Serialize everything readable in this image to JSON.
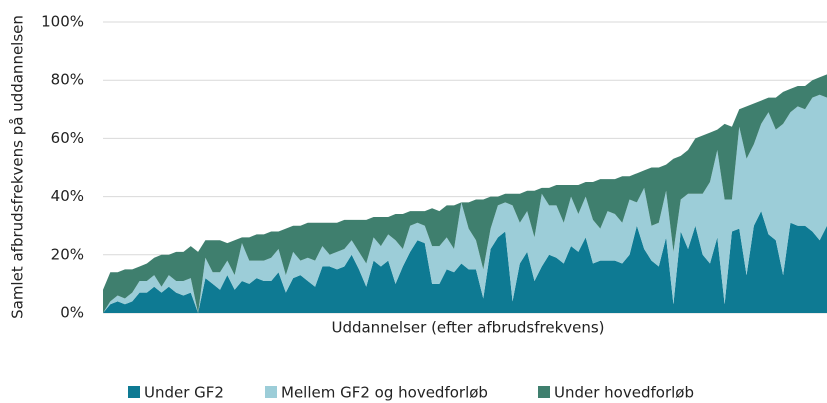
{
  "chart_data": {
    "type": "stacked_area",
    "x_label": "Uddannelser (efter afbrudsfrekvens)",
    "y_label": "Samlet afbrudsfrekvens på uddannelsen",
    "categories": [
      null,
      null,
      null,
      null,
      null,
      null,
      null,
      null,
      null,
      null,
      null,
      null,
      null,
      null,
      null,
      null,
      null,
      null,
      null,
      null,
      null,
      null,
      null,
      null,
      null,
      null,
      null,
      null,
      null,
      null,
      null,
      null,
      null,
      null,
      null,
      null,
      null,
      null,
      null,
      null,
      null,
      null,
      null,
      null,
      null,
      null,
      null,
      null,
      null,
      null,
      null,
      null,
      null,
      null,
      null,
      null,
      null,
      null,
      null,
      null,
      null,
      null,
      null,
      null,
      null,
      null,
      null,
      null,
      null,
      null,
      null,
      null,
      null,
      null,
      null,
      null,
      null,
      null,
      null,
      null,
      null,
      null,
      null,
      null,
      null,
      null,
      null,
      null,
      null,
      null,
      null,
      null,
      null,
      null,
      null,
      null,
      null,
      null,
      null,
      null
    ],
    "series": [
      {
        "name": "Under GF2",
        "color": "#0e7a93",
        "values": [
          0,
          3,
          4,
          3,
          4,
          7,
          7,
          9,
          7,
          9,
          7,
          6,
          7,
          0,
          12,
          10,
          8,
          13,
          8,
          11,
          10,
          12,
          11,
          11,
          14,
          7,
          12,
          13,
          11,
          9,
          16,
          16,
          15,
          16,
          20,
          15,
          9,
          18,
          16,
          18,
          10,
          16,
          21,
          25,
          24,
          10,
          10,
          15,
          14,
          17,
          15,
          15,
          5,
          22,
          26,
          28,
          4,
          17,
          21,
          11,
          16,
          20,
          19,
          17,
          23,
          21,
          26,
          17,
          18,
          18,
          18,
          17,
          20,
          30,
          22,
          18,
          16,
          26,
          3,
          28,
          22,
          30,
          20,
          17,
          26,
          3,
          28,
          29,
          13,
          30,
          35,
          27,
          25,
          13,
          31,
          30,
          30,
          28,
          25,
          30
        ]
      },
      {
        "name": "Mellem GF2 og hovedforløb",
        "color": "#9ccdd8",
        "values": [
          0,
          1,
          2,
          2,
          3,
          4,
          4,
          4,
          2,
          4,
          4,
          5,
          5,
          0,
          7,
          4,
          6,
          5,
          5,
          13,
          8,
          6,
          7,
          8,
          8,
          6,
          9,
          5,
          8,
          9,
          7,
          4,
          6,
          6,
          5,
          6,
          8,
          8,
          7,
          9,
          15,
          6,
          9,
          6,
          6,
          13,
          13,
          11,
          8,
          21,
          14,
          10,
          10,
          7,
          11,
          10,
          33,
          14,
          14,
          15,
          25,
          17,
          18,
          14,
          17,
          13,
          14,
          15,
          11,
          17,
          16,
          14,
          19,
          8,
          21,
          12,
          15,
          16,
          18,
          11,
          19,
          11,
          21,
          28,
          30,
          36,
          11,
          35,
          40,
          28,
          30,
          42,
          38,
          52,
          38,
          41,
          40,
          46,
          50,
          44
        ]
      },
      {
        "name": "Under hovedforløb",
        "color": "#3f7f6e",
        "values": [
          8,
          10,
          8,
          10,
          8,
          5,
          6,
          6,
          11,
          7,
          10,
          10,
          11,
          21,
          6,
          11,
          11,
          6,
          12,
          2,
          8,
          9,
          9,
          9,
          6,
          16,
          9,
          12,
          12,
          13,
          8,
          11,
          10,
          10,
          7,
          11,
          15,
          7,
          10,
          6,
          9,
          12,
          5,
          4,
          5,
          13,
          12,
          11,
          15,
          0,
          9,
          14,
          24,
          11,
          3,
          3,
          4,
          10,
          7,
          16,
          2,
          6,
          7,
          13,
          4,
          10,
          5,
          13,
          17,
          11,
          12,
          16,
          8,
          10,
          6,
          20,
          19,
          9,
          32,
          15,
          15,
          19,
          20,
          17,
          7,
          26,
          25,
          6,
          18,
          14,
          8,
          5,
          11,
          11,
          8,
          7,
          8,
          6,
          6,
          8
        ]
      }
    ],
    "ylim": [
      0,
      100
    ],
    "yticks": [
      {
        "value": 0,
        "label": "0%"
      },
      {
        "value": 20,
        "label": "20%"
      },
      {
        "value": 40,
        "label": "40%"
      },
      {
        "value": 60,
        "label": "60%"
      },
      {
        "value": 80,
        "label": "80%"
      },
      {
        "value": 100,
        "label": "100%"
      }
    ],
    "grid": true,
    "legend": "bottom"
  }
}
